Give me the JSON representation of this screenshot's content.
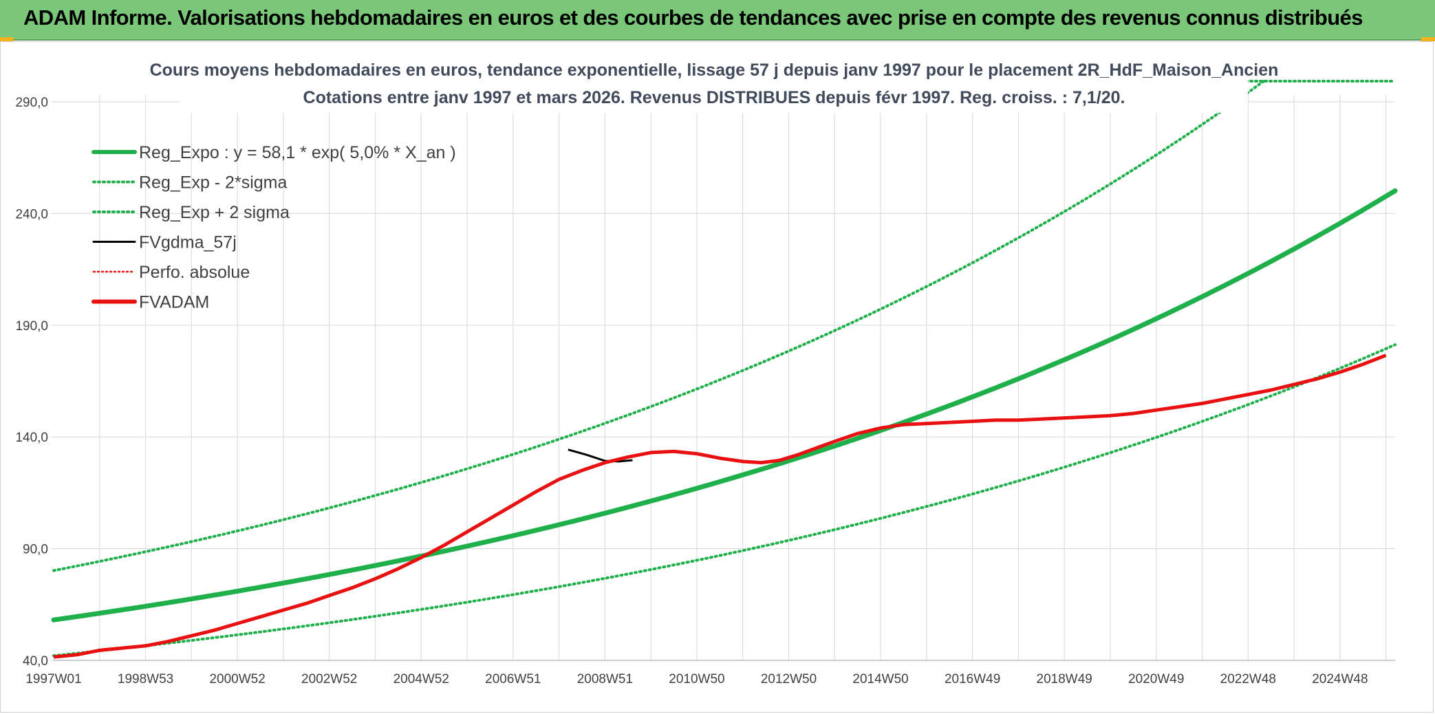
{
  "banner": {
    "title": "ADAM Informe. Valorisations hebdomadaires en euros et des courbes de tendances avec prise en compte des revenus connus distribués"
  },
  "colors": {
    "banner_bg": "#7ac77a",
    "reg_green": "#1fb04b",
    "fvadam_red": "#e81010",
    "fvgdma_black": "#000000",
    "perfo_red": "#e81010"
  },
  "chart_data": {
    "type": "line",
    "title": [
      "Cours moyens hebdomadaires en euros, tendance exponentielle, lissage 57 j depuis janv 1997 pour le placement 2R_HdF_Maison_Ancien",
      "Cotations entre janv 1997 et mars 2026. Revenus DISTRIBUES depuis févr 1997. Reg. croiss. : 7,1/20."
    ],
    "xlabel": "",
    "ylabel": "",
    "x_range_years": [
      1997.0,
      2026.2
    ],
    "ylim": [
      40,
      290
    ],
    "y_ticks": [
      "40,0",
      "90,0",
      "140,0",
      "190,0",
      "240,0",
      "290,0"
    ],
    "y_tick_values": [
      40,
      90,
      140,
      190,
      240,
      290
    ],
    "x_ticks": [
      {
        "label": "1997W01",
        "year": 1997.0
      },
      {
        "label": "1998W53",
        "year": 1999.0
      },
      {
        "label": "2000W52",
        "year": 2001.0
      },
      {
        "label": "2002W52",
        "year": 2003.0
      },
      {
        "label": "2004W52",
        "year": 2005.0
      },
      {
        "label": "2006W51",
        "year": 2007.0
      },
      {
        "label": "2008W51",
        "year": 2009.0
      },
      {
        "label": "2010W50",
        "year": 2011.0
      },
      {
        "label": "2012W50",
        "year": 2013.0
      },
      {
        "label": "2014W50",
        "year": 2015.0
      },
      {
        "label": "2016W49",
        "year": 2017.0
      },
      {
        "label": "2018W49",
        "year": 2019.0
      },
      {
        "label": "2020W49",
        "year": 2021.0
      },
      {
        "label": "2022W48",
        "year": 2023.0
      },
      {
        "label": "2024W48",
        "year": 2025.0
      }
    ],
    "grid": true,
    "legend_position": "top-left",
    "regression": {
      "a": 58.1,
      "rate": 0.05,
      "sigma_factor": 1.38
    },
    "series": [
      {
        "name": "Reg_Expo : y = 58,1 * exp( 5,0% *  X_an )",
        "style": "solid-thick",
        "color": "#1fb04b"
      },
      {
        "name": "Reg_Exp - 2*sigma",
        "style": "dotted",
        "color": "#1fb04b"
      },
      {
        "name": "Reg_Exp + 2 sigma",
        "style": "dotted",
        "color": "#1fb04b"
      },
      {
        "name": "FVgdma_57j",
        "style": "solid",
        "color": "#000000",
        "points": [
          [
            2008.2,
            134.3
          ],
          [
            2008.6,
            132.0
          ],
          [
            2009.0,
            129.3
          ],
          [
            2009.3,
            129.0
          ],
          [
            2009.6,
            129.6
          ]
        ]
      },
      {
        "name": "Perfo. absolue",
        "style": "dotted-thin",
        "color": "#e81010"
      },
      {
        "name": "FVADAM",
        "style": "solid-thick",
        "color": "#e81010",
        "points": [
          [
            1997.0,
            41.5
          ],
          [
            1997.5,
            42.5
          ],
          [
            1998.0,
            44.5
          ],
          [
            1998.5,
            45.5
          ],
          [
            1999.0,
            46.5
          ],
          [
            1999.5,
            48.5
          ],
          [
            2000.0,
            51.0
          ],
          [
            2000.5,
            53.5
          ],
          [
            2001.0,
            56.5
          ],
          [
            2001.5,
            59.5
          ],
          [
            2002.0,
            62.5
          ],
          [
            2002.5,
            65.5
          ],
          [
            2003.0,
            69.0
          ],
          [
            2003.5,
            72.5
          ],
          [
            2004.0,
            76.5
          ],
          [
            2004.5,
            81.0
          ],
          [
            2005.0,
            86.0
          ],
          [
            2005.5,
            91.5
          ],
          [
            2006.0,
            97.5
          ],
          [
            2006.5,
            103.5
          ],
          [
            2007.0,
            109.5
          ],
          [
            2007.5,
            115.5
          ],
          [
            2008.0,
            121.0
          ],
          [
            2008.5,
            125.0
          ],
          [
            2009.0,
            128.5
          ],
          [
            2009.5,
            131.0
          ],
          [
            2010.0,
            133.0
          ],
          [
            2010.5,
            133.5
          ],
          [
            2011.0,
            132.5
          ],
          [
            2011.5,
            130.5
          ],
          [
            2012.0,
            129.0
          ],
          [
            2012.4,
            128.5
          ],
          [
            2012.8,
            129.5
          ],
          [
            2013.2,
            132.0
          ],
          [
            2013.6,
            135.0
          ],
          [
            2014.0,
            138.0
          ],
          [
            2014.5,
            141.5
          ],
          [
            2015.0,
            144.0
          ],
          [
            2015.5,
            145.5
          ],
          [
            2016.0,
            146.0
          ],
          [
            2016.5,
            146.5
          ],
          [
            2017.0,
            147.0
          ],
          [
            2017.5,
            147.5
          ],
          [
            2018.0,
            147.5
          ],
          [
            2018.5,
            148.0
          ],
          [
            2019.0,
            148.5
          ],
          [
            2019.5,
            149.0
          ],
          [
            2020.0,
            149.5
          ],
          [
            2020.5,
            150.5
          ],
          [
            2021.0,
            152.0
          ],
          [
            2021.5,
            153.5
          ],
          [
            2022.0,
            155.0
          ],
          [
            2022.5,
            157.0
          ],
          [
            2023.0,
            159.0
          ],
          [
            2023.5,
            161.0
          ],
          [
            2024.0,
            163.5
          ],
          [
            2024.5,
            166.0
          ],
          [
            2025.0,
            169.0
          ],
          [
            2025.5,
            172.5
          ],
          [
            2026.0,
            176.5
          ]
        ]
      }
    ]
  }
}
